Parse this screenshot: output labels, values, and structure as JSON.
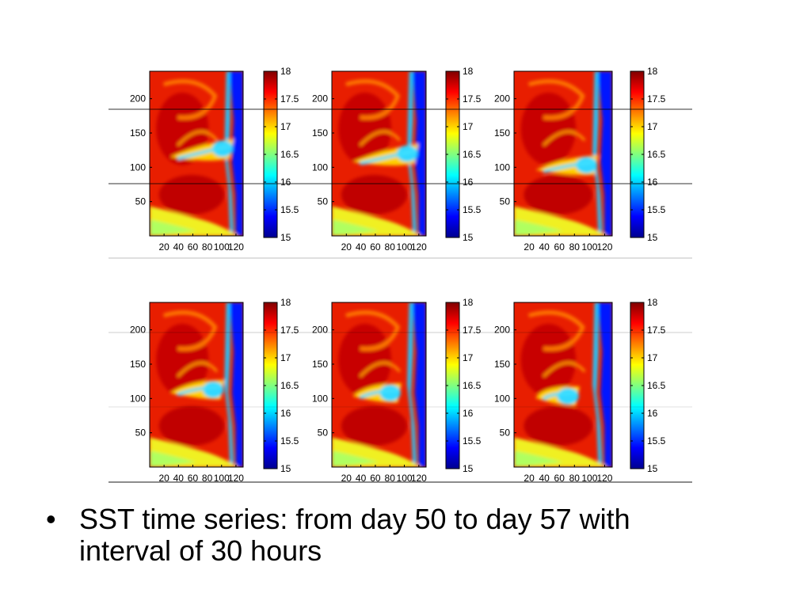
{
  "chart_data": [
    {
      "type": "heatmap",
      "panel": 1,
      "xticks": [
        "20",
        "40",
        "60",
        "80",
        "100",
        "120"
      ],
      "yticks": [
        "50",
        "100",
        "150",
        "200"
      ],
      "colorbar": {
        "min": 15,
        "max": 18,
        "ticks": [
          "15",
          "15.5",
          "16",
          "16.5",
          "17",
          "17.5",
          "18"
        ]
      }
    },
    {
      "type": "heatmap",
      "panel": 2,
      "xticks": [
        "20",
        "40",
        "60",
        "80",
        "100",
        "120"
      ],
      "yticks": [
        "50",
        "100",
        "150",
        "200"
      ],
      "colorbar": {
        "min": 15,
        "max": 18,
        "ticks": [
          "15",
          "15.5",
          "16",
          "16.5",
          "17",
          "17.5",
          "18"
        ]
      }
    },
    {
      "type": "heatmap",
      "panel": 3,
      "xticks": [
        "20",
        "40",
        "60",
        "80",
        "100",
        "120"
      ],
      "yticks": [
        "50",
        "100",
        "150",
        "200"
      ],
      "colorbar": {
        "min": 15,
        "max": 18,
        "ticks": [
          "15",
          "15.5",
          "16",
          "16.5",
          "17",
          "17.5",
          "18"
        ]
      }
    },
    {
      "type": "heatmap",
      "panel": 4,
      "xticks": [
        "20",
        "40",
        "60",
        "80",
        "100",
        "120"
      ],
      "yticks": [
        "50",
        "100",
        "150",
        "200"
      ],
      "colorbar": {
        "min": 15,
        "max": 18,
        "ticks": [
          "15",
          "15.5",
          "16",
          "16.5",
          "17",
          "17.5",
          "18"
        ]
      }
    },
    {
      "type": "heatmap",
      "panel": 5,
      "xticks": [
        "20",
        "40",
        "60",
        "80",
        "100",
        "120"
      ],
      "yticks": [
        "50",
        "100",
        "150",
        "200"
      ],
      "colorbar": {
        "min": 15,
        "max": 18,
        "ticks": [
          "15",
          "15.5",
          "16",
          "16.5",
          "17",
          "17.5",
          "18"
        ]
      }
    },
    {
      "type": "heatmap",
      "panel": 6,
      "xticks": [
        "20",
        "40",
        "60",
        "80",
        "100",
        "120"
      ],
      "yticks": [
        "50",
        "100",
        "150",
        "200"
      ],
      "colorbar": {
        "min": 15,
        "max": 18,
        "ticks": [
          "15",
          "15.5",
          "16",
          "16.5",
          "17",
          "17.5",
          "18"
        ]
      }
    }
  ],
  "slide": {
    "bullet_symbol": "•",
    "bullet_text": "SST time series: from day 50 to day 57 with interval of 30 hours"
  }
}
